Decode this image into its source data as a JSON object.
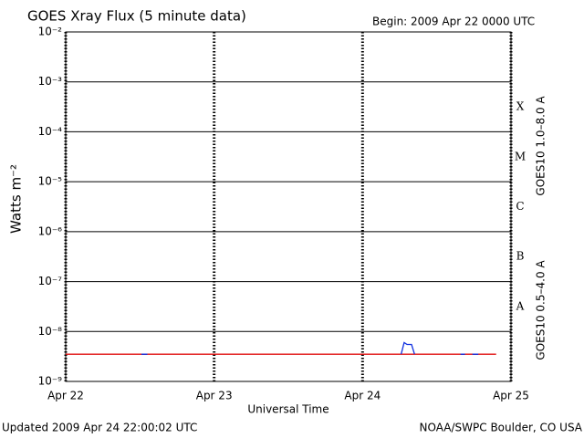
{
  "chart_data": {
    "type": "line",
    "title": "GOES Xray Flux (5 minute data)",
    "subtitle": "Begin:  2009 Apr 22 0000 UTC",
    "ylabel": "Watts m⁻²",
    "xlabel": "Universal Time",
    "footer_left": "Updated 2009 Apr 24 22:00:02 UTC",
    "footer_right": "NOAA/SWPC Boulder, CO USA",
    "log_y": true,
    "grid": true,
    "ylim": [
      1e-09,
      0.01
    ],
    "yticks": [
      {
        "value": 1e-09,
        "label": "10⁻⁹"
      },
      {
        "value": 1e-08,
        "label": "10⁻⁸"
      },
      {
        "value": 1e-07,
        "label": "10⁻⁷"
      },
      {
        "value": 1e-06,
        "label": "10⁻⁶"
      },
      {
        "value": 1e-05,
        "label": "10⁻⁵"
      },
      {
        "value": 0.0001,
        "label": "10⁻⁴"
      },
      {
        "value": 0.001,
        "label": "10⁻³"
      },
      {
        "value": 0.01,
        "label": "10⁻²"
      }
    ],
    "xlim": [
      0,
      3
    ],
    "xticks": [
      {
        "value": 0,
        "label": "Apr 22"
      },
      {
        "value": 1,
        "label": "Apr 23"
      },
      {
        "value": 2,
        "label": "Apr 24"
      },
      {
        "value": 3,
        "label": "Apr 25"
      }
    ],
    "flare_classes": [
      "X",
      "M",
      "C",
      "B",
      "A"
    ],
    "series": [
      {
        "name": "GOES10 1.0–8.0 A",
        "color": "#e01010",
        "x": [
          0,
          0.5,
          1,
          1.5,
          2,
          2.5,
          2.9
        ],
        "values": [
          3.5e-09,
          3.5e-09,
          3.5e-09,
          3.5e-09,
          3.5e-09,
          3.5e-09,
          3.5e-09
        ]
      },
      {
        "name": "GOES10 0.5–4.0 A",
        "color": "#1030e0",
        "x": [
          0.51,
          0.55,
          0.6,
          2.26,
          2.28,
          2.3,
          2.33,
          2.35,
          2.4,
          2.66,
          2.69,
          2.7,
          2.74,
          2.78
        ],
        "values": [
          3.5e-09,
          3.5e-09,
          null,
          3.5e-09,
          6e-09,
          5.5e-09,
          5.5e-09,
          3.5e-09,
          null,
          3.5e-09,
          3.5e-09,
          null,
          3.5e-09,
          3.5e-09
        ]
      }
    ]
  }
}
